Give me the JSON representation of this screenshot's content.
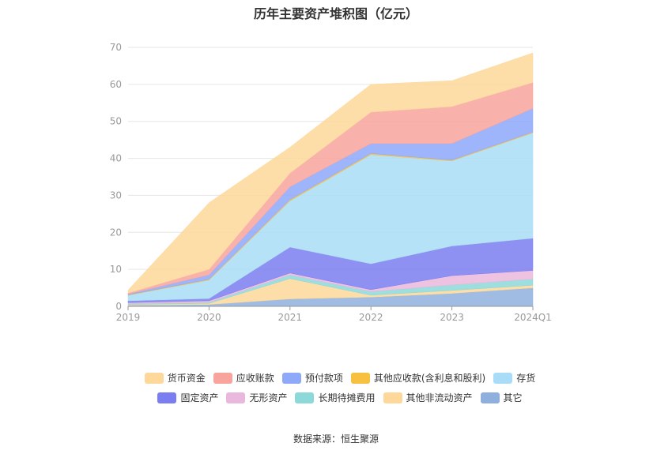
{
  "chart_data": {
    "type": "area",
    "stacked": true,
    "title": "历年主要资产堆积图（亿元）",
    "categories": [
      "2019",
      "2020",
      "2021",
      "2022",
      "2023",
      "2024Q1"
    ],
    "y_ticks": [
      "0",
      "10",
      "20",
      "30",
      "40",
      "50",
      "60",
      "70"
    ],
    "ylim": [
      0,
      70
    ],
    "grid": true,
    "legend_position": "bottom",
    "series": [
      {
        "name": "其它",
        "color": "#8fb0dd",
        "values": [
          0.3,
          0.5,
          2.0,
          2.5,
          3.5,
          5.0
        ]
      },
      {
        "name": "其他非流动资产",
        "color": "#fdd89a",
        "values": [
          0.2,
          0.3,
          5.5,
          0.5,
          0.8,
          0.7
        ]
      },
      {
        "name": "长期待摊费用",
        "color": "#8dd8d8",
        "values": [
          0.2,
          0.3,
          1.0,
          1.0,
          1.5,
          1.7
        ]
      },
      {
        "name": "无形资产",
        "color": "#eab8dc",
        "values": [
          0.3,
          0.4,
          0.5,
          0.5,
          2.5,
          2.3
        ]
      },
      {
        "name": "固定资产",
        "color": "#7b7ef0",
        "values": [
          0.5,
          0.6,
          7.0,
          7.0,
          8.0,
          8.7
        ]
      },
      {
        "name": "存货",
        "color": "#a9ddf7",
        "values": [
          1.5,
          5.0,
          12.5,
          29.5,
          23.0,
          28.5
        ]
      },
      {
        "name": "其他应收款(含利息和股利)",
        "color": "#f8c040",
        "values": [
          0.1,
          0.2,
          0.3,
          0.3,
          0.2,
          0.2
        ]
      },
      {
        "name": "预付款项",
        "color": "#8ea8fa",
        "values": [
          0.2,
          1.2,
          3.5,
          2.7,
          4.5,
          6.4
        ]
      },
      {
        "name": "应收账款",
        "color": "#f8a49c",
        "values": [
          0.3,
          1.5,
          3.7,
          8.5,
          10.0,
          7.0
        ]
      },
      {
        "name": "货币资金",
        "color": "#fdd89a",
        "values": [
          0.8,
          18.0,
          7.0,
          7.5,
          7.0,
          8.0
        ]
      }
    ],
    "legend": [
      [
        "货币资金",
        "应收账款",
        "预付款项",
        "其他应收款(含利息和股利)",
        "存货"
      ],
      [
        "固定资产",
        "无形资产",
        "长期待摊费用",
        "其他非流动资产",
        "其它"
      ]
    ]
  },
  "source_text": "数据来源：恒生聚源"
}
